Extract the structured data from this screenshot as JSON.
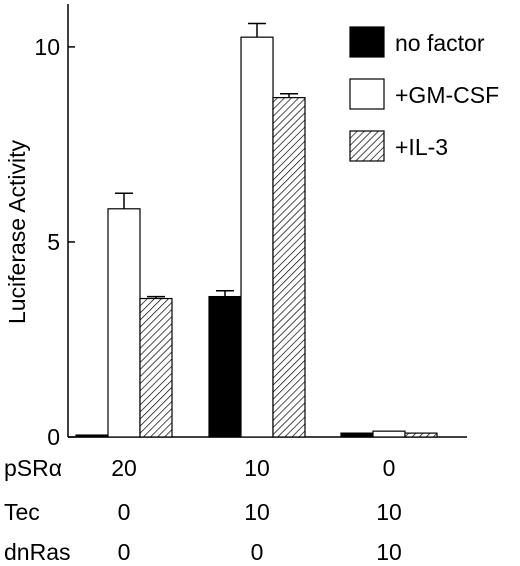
{
  "chart_data": {
    "type": "bar",
    "ylabel": "Luciferase Activity",
    "ylim": [
      0,
      11.1
    ],
    "yticks": [
      0,
      5,
      10
    ],
    "groups": [
      {
        "pSRa": "20",
        "Tec": "0",
        "dnRas": "0"
      },
      {
        "pSRa": "10",
        "Tec": "10",
        "dnRas": "0"
      },
      {
        "pSRa": "0",
        "Tec": "10",
        "dnRas": "10"
      }
    ],
    "row_labels": [
      "pSRα",
      "Tec",
      "dnRas"
    ],
    "series": [
      {
        "name": "no factor",
        "fill": "black",
        "values": [
          0.05,
          3.6,
          0.1
        ],
        "errors": [
          0,
          0.15,
          0
        ]
      },
      {
        "name": "+GM-CSF",
        "fill": "white",
        "values": [
          5.85,
          10.25,
          0.15
        ],
        "errors": [
          0.4,
          0.35,
          0
        ]
      },
      {
        "name": "+IL-3",
        "fill": "hatch",
        "values": [
          3.55,
          8.7,
          0.1
        ],
        "errors": [
          0.05,
          0.1,
          0
        ]
      }
    ],
    "legend_position": "top-right"
  }
}
